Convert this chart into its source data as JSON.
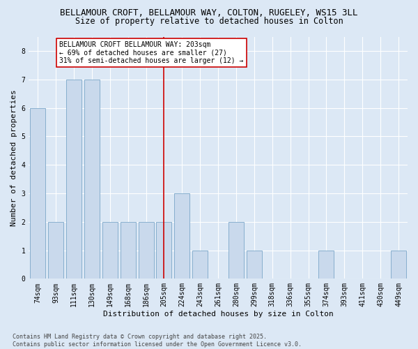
{
  "title1": "BELLAMOUR CROFT, BELLAMOUR WAY, COLTON, RUGELEY, WS15 3LL",
  "title2": "Size of property relative to detached houses in Colton",
  "xlabel": "Distribution of detached houses by size in Colton",
  "ylabel": "Number of detached properties",
  "categories": [
    "74sqm",
    "93sqm",
    "111sqm",
    "130sqm",
    "149sqm",
    "168sqm",
    "186sqm",
    "205sqm",
    "224sqm",
    "243sqm",
    "261sqm",
    "280sqm",
    "299sqm",
    "318sqm",
    "336sqm",
    "355sqm",
    "374sqm",
    "393sqm",
    "411sqm",
    "430sqm",
    "449sqm"
  ],
  "values": [
    6,
    2,
    7,
    7,
    2,
    2,
    2,
    2,
    3,
    1,
    0,
    2,
    1,
    0,
    0,
    0,
    1,
    0,
    0,
    0,
    1
  ],
  "bar_color": "#c9d9ec",
  "bar_edge_color": "#7aa6c8",
  "reference_line_x": 7,
  "reference_line_color": "#cc0000",
  "annotation_text": "BELLAMOUR CROFT BELLAMOUR WAY: 203sqm\n← 69% of detached houses are smaller (27)\n31% of semi-detached houses are larger (12) →",
  "annotation_box_color": "white",
  "annotation_box_edge_color": "#cc0000",
  "ylim": [
    0,
    8.5
  ],
  "yticks": [
    0,
    1,
    2,
    3,
    4,
    5,
    6,
    7,
    8
  ],
  "background_color": "#dce8f5",
  "grid_color": "#ffffff",
  "footer_text": "Contains HM Land Registry data © Crown copyright and database right 2025.\nContains public sector information licensed under the Open Government Licence v3.0.",
  "title_fontsize": 9,
  "subtitle_fontsize": 8.5,
  "axis_label_fontsize": 8,
  "tick_fontsize": 7,
  "annotation_fontsize": 7,
  "footer_fontsize": 6
}
